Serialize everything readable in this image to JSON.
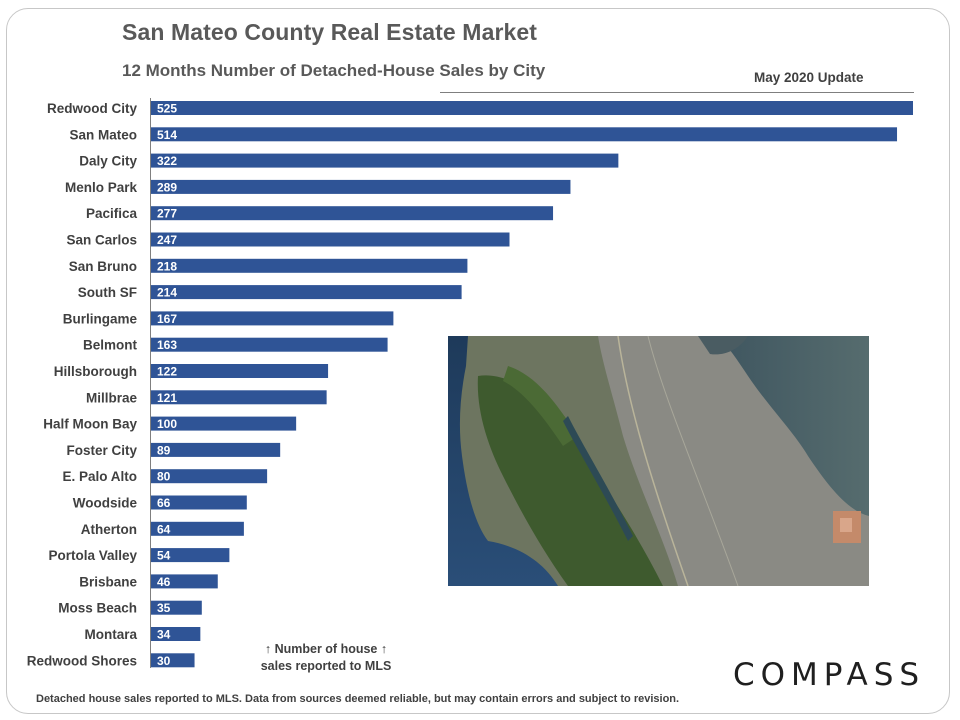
{
  "header": {
    "title": "San Mateo County Real Estate Market",
    "subtitle": "12 Months  Number of Detached-House  Sales by City",
    "update": "May 2020 Update"
  },
  "chart_data": {
    "type": "bar",
    "orientation": "horizontal",
    "title": "San Mateo County Real Estate Market",
    "subtitle": "12 Months  Number of Detached-House  Sales by City",
    "categories": [
      "Redwood City",
      "San Mateo",
      "Daly City",
      "Menlo Park",
      "Pacifica",
      "San Carlos",
      "San Bruno",
      "South SF",
      "Burlingame",
      "Belmont",
      "Hillsborough",
      "Millbrae",
      "Half Moon Bay",
      "Foster City",
      "E. Palo Alto",
      "Woodside",
      "Atherton",
      "Portola Valley",
      "Brisbane",
      "Moss Beach",
      "Montara",
      "Redwood Shores"
    ],
    "values": [
      525,
      514,
      322,
      289,
      277,
      247,
      218,
      214,
      167,
      163,
      122,
      121,
      100,
      89,
      80,
      66,
      64,
      54,
      46,
      35,
      34,
      30
    ],
    "xlim": [
      0,
      525
    ],
    "data_labels": true,
    "bar_color": "#2f5496",
    "grid": false,
    "legend": "none"
  },
  "map": {
    "icon": "satellite-map-image"
  },
  "annotation": {
    "line1": "Number of house",
    "line2": "sales reported to MLS",
    "arrow": "↑"
  },
  "logo": "COMPASS",
  "footnote": "Detached house sales reported to MLS. Data from sources deemed reliable, but may contain errors and subject to revision."
}
